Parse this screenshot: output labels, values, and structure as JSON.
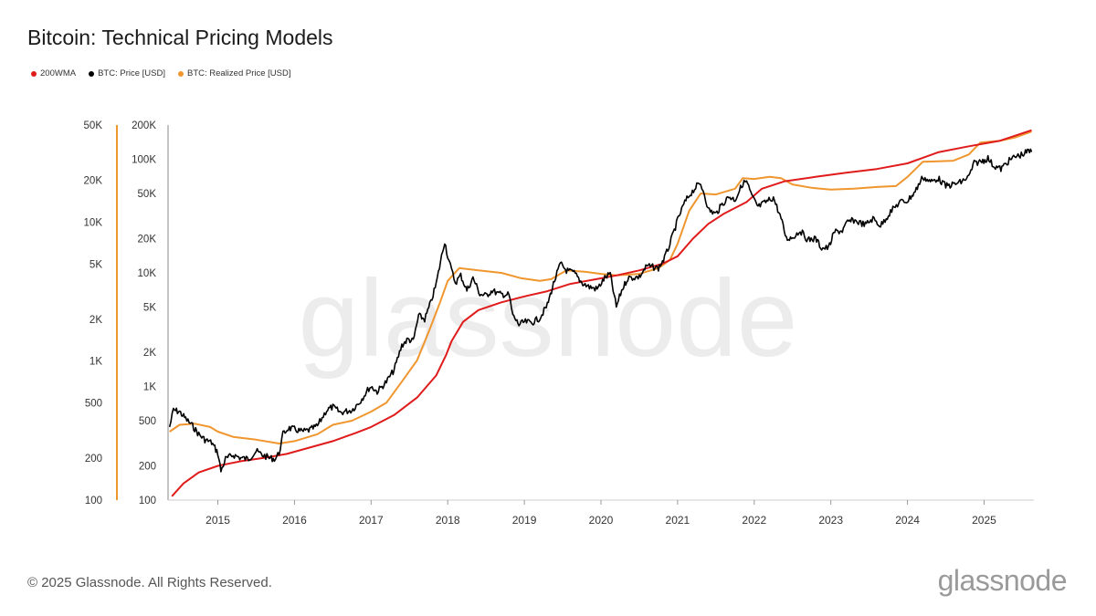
{
  "title": "Bitcoin: Technical Pricing Models",
  "footer": {
    "copyright": "© 2025 Glassnode. All Rights Reserved.",
    "logo": "glassnode"
  },
  "watermark": "glassnode",
  "colors": {
    "wma200": "#e01b1b",
    "price": "#000000",
    "realized": "#f0962e",
    "axis": "#666666"
  },
  "chart_data": {
    "type": "line",
    "title": "Bitcoin: Technical Pricing Models",
    "legend": [
      {
        "name": "200WMA",
        "color": "#e01b1b"
      },
      {
        "name": "BTC: Price [USD]",
        "color": "#000000"
      },
      {
        "name": "BTC: Realized Price [USD]",
        "color": "#f0962e"
      }
    ],
    "legend_position": "top-left",
    "grid": false,
    "x_ticks": [
      "2015",
      "2016",
      "2017",
      "2018",
      "2019",
      "2020",
      "2021",
      "2022",
      "2023",
      "2024",
      "2025"
    ],
    "x_range": [
      2014.35,
      2025.65
    ],
    "y_left": {
      "scale": "log",
      "range": [
        100,
        50000
      ],
      "ticks": [
        100,
        200,
        500,
        1000,
        2000,
        5000,
        10000,
        20000,
        50000
      ],
      "tick_labels": [
        "100",
        "200",
        "500",
        "1K",
        "2K",
        "5K",
        "10K",
        "20K",
        "50K"
      ]
    },
    "y_right": {
      "scale": "log",
      "range": [
        100,
        200000
      ],
      "ticks": [
        100,
        200,
        500,
        1000,
        2000,
        5000,
        10000,
        20000,
        50000,
        100000,
        200000
      ],
      "tick_labels": [
        "100",
        "200",
        "500",
        "1K",
        "2K",
        "5K",
        "10K",
        "20K",
        "50K",
        "100K",
        "200K"
      ]
    },
    "series": [
      {
        "name": "BTC: Price [USD]",
        "color": "#000000",
        "points": [
          [
            2014.37,
            440
          ],
          [
            2014.42,
            620
          ],
          [
            2014.5,
            600
          ],
          [
            2014.58,
            520
          ],
          [
            2014.67,
            450
          ],
          [
            2014.75,
            380
          ],
          [
            2014.83,
            340
          ],
          [
            2014.92,
            320
          ],
          [
            2015.0,
            260
          ],
          [
            2015.04,
            180
          ],
          [
            2015.1,
            230
          ],
          [
            2015.2,
            250
          ],
          [
            2015.3,
            235
          ],
          [
            2015.4,
            230
          ],
          [
            2015.5,
            270
          ],
          [
            2015.58,
            250
          ],
          [
            2015.67,
            235
          ],
          [
            2015.75,
            230
          ],
          [
            2015.8,
            260
          ],
          [
            2015.85,
            380
          ],
          [
            2015.92,
            430
          ],
          [
            2016.0,
            420
          ],
          [
            2016.1,
            400
          ],
          [
            2016.2,
            415
          ],
          [
            2016.3,
            450
          ],
          [
            2016.42,
            620
          ],
          [
            2016.5,
            660
          ],
          [
            2016.6,
            590
          ],
          [
            2016.75,
            620
          ],
          [
            2016.85,
            730
          ],
          [
            2016.97,
            960
          ],
          [
            2017.0,
            1000
          ],
          [
            2017.08,
            900
          ],
          [
            2017.2,
            1100
          ],
          [
            2017.3,
            1400
          ],
          [
            2017.4,
            2300
          ],
          [
            2017.48,
            2600
          ],
          [
            2017.55,
            2500
          ],
          [
            2017.62,
            4200
          ],
          [
            2017.7,
            3900
          ],
          [
            2017.78,
            5500
          ],
          [
            2017.85,
            8000
          ],
          [
            2017.92,
            14000
          ],
          [
            2017.96,
            19000
          ],
          [
            2018.0,
            14000
          ],
          [
            2018.05,
            10500
          ],
          [
            2018.1,
            8200
          ],
          [
            2018.17,
            9500
          ],
          [
            2018.25,
            7000
          ],
          [
            2018.33,
            9000
          ],
          [
            2018.42,
            6500
          ],
          [
            2018.5,
            6300
          ],
          [
            2018.58,
            7000
          ],
          [
            2018.67,
            6500
          ],
          [
            2018.8,
            6400
          ],
          [
            2018.85,
            4200
          ],
          [
            2018.93,
            3500
          ],
          [
            2019.0,
            3700
          ],
          [
            2019.1,
            3650
          ],
          [
            2019.2,
            4000
          ],
          [
            2019.3,
            5200
          ],
          [
            2019.38,
            8000
          ],
          [
            2019.47,
            12000
          ],
          [
            2019.55,
            10500
          ],
          [
            2019.65,
            10000
          ],
          [
            2019.75,
            8200
          ],
          [
            2019.85,
            7500
          ],
          [
            2019.95,
            7200
          ],
          [
            2020.05,
            9000
          ],
          [
            2020.12,
            9800
          ],
          [
            2020.2,
            5000
          ],
          [
            2020.27,
            7000
          ],
          [
            2020.35,
            9000
          ],
          [
            2020.5,
            9200
          ],
          [
            2020.6,
            11500
          ],
          [
            2020.75,
            11000
          ],
          [
            2020.83,
            13500
          ],
          [
            2020.9,
            18000
          ],
          [
            2021.0,
            29000
          ],
          [
            2021.08,
            40000
          ],
          [
            2021.15,
            48000
          ],
          [
            2021.25,
            58000
          ],
          [
            2021.3,
            60000
          ],
          [
            2021.35,
            50000
          ],
          [
            2021.4,
            36000
          ],
          [
            2021.5,
            33000
          ],
          [
            2021.58,
            40000
          ],
          [
            2021.67,
            47000
          ],
          [
            2021.75,
            44000
          ],
          [
            2021.85,
            61000
          ],
          [
            2021.9,
            64000
          ],
          [
            2021.97,
            47000
          ],
          [
            2022.05,
            38000
          ],
          [
            2022.15,
            42000
          ],
          [
            2022.25,
            46000
          ],
          [
            2022.35,
            30000
          ],
          [
            2022.42,
            20000
          ],
          [
            2022.5,
            20500
          ],
          [
            2022.6,
            23500
          ],
          [
            2022.7,
            19500
          ],
          [
            2022.8,
            20000
          ],
          [
            2022.88,
            16500
          ],
          [
            2022.97,
            16600
          ],
          [
            2023.05,
            23000
          ],
          [
            2023.15,
            23500
          ],
          [
            2023.22,
            28000
          ],
          [
            2023.3,
            29000
          ],
          [
            2023.45,
            26500
          ],
          [
            2023.55,
            30000
          ],
          [
            2023.65,
            26000
          ],
          [
            2023.78,
            34500
          ],
          [
            2023.9,
            42000
          ],
          [
            2024.0,
            43000
          ],
          [
            2024.1,
            52000
          ],
          [
            2024.2,
            70000
          ],
          [
            2024.3,
            63000
          ],
          [
            2024.4,
            68000
          ],
          [
            2024.5,
            58000
          ],
          [
            2024.6,
            60000
          ],
          [
            2024.7,
            63000
          ],
          [
            2024.8,
            70000
          ],
          [
            2024.87,
            92000
          ],
          [
            2024.97,
            96000
          ],
          [
            2025.05,
            102000
          ],
          [
            2025.12,
            88000
          ],
          [
            2025.22,
            82000
          ],
          [
            2025.3,
            94000
          ],
          [
            2025.4,
            105000
          ],
          [
            2025.5,
            110000
          ],
          [
            2025.58,
            118000
          ],
          [
            2025.62,
            116000
          ]
        ]
      },
      {
        "name": "BTC: Realized Price [USD]",
        "color": "#f0962e",
        "points": [
          [
            2014.37,
            400
          ],
          [
            2014.5,
            460
          ],
          [
            2014.7,
            470
          ],
          [
            2014.9,
            440
          ],
          [
            2015.0,
            400
          ],
          [
            2015.2,
            360
          ],
          [
            2015.5,
            340
          ],
          [
            2015.8,
            315
          ],
          [
            2016.0,
            330
          ],
          [
            2016.3,
            380
          ],
          [
            2016.5,
            460
          ],
          [
            2016.75,
            500
          ],
          [
            2017.0,
            600
          ],
          [
            2017.2,
            720
          ],
          [
            2017.4,
            1100
          ],
          [
            2017.6,
            1700
          ],
          [
            2017.75,
            3000
          ],
          [
            2017.9,
            5500
          ],
          [
            2018.0,
            8500
          ],
          [
            2018.15,
            11000
          ],
          [
            2018.4,
            10500
          ],
          [
            2018.7,
            10000
          ],
          [
            2018.95,
            9000
          ],
          [
            2019.2,
            8500
          ],
          [
            2019.35,
            8800
          ],
          [
            2019.55,
            10500
          ],
          [
            2019.8,
            10200
          ],
          [
            2020.0,
            9800
          ],
          [
            2020.2,
            9500
          ],
          [
            2020.5,
            9800
          ],
          [
            2020.75,
            11000
          ],
          [
            2020.9,
            13000
          ],
          [
            2021.0,
            18000
          ],
          [
            2021.15,
            35000
          ],
          [
            2021.3,
            50000
          ],
          [
            2021.5,
            49000
          ],
          [
            2021.75,
            55000
          ],
          [
            2021.85,
            68000
          ],
          [
            2022.0,
            67000
          ],
          [
            2022.2,
            70000
          ],
          [
            2022.35,
            68000
          ],
          [
            2022.5,
            60000
          ],
          [
            2022.75,
            56000
          ],
          [
            2023.0,
            54000
          ],
          [
            2023.3,
            55000
          ],
          [
            2023.6,
            57000
          ],
          [
            2023.85,
            58000
          ],
          [
            2024.0,
            70000
          ],
          [
            2024.2,
            95000
          ],
          [
            2024.4,
            96000
          ],
          [
            2024.6,
            97000
          ],
          [
            2024.8,
            110000
          ],
          [
            2024.95,
            140000
          ],
          [
            2025.2,
            145000
          ],
          [
            2025.4,
            155000
          ],
          [
            2025.62,
            175000
          ]
        ]
      },
      {
        "name": "200WMA",
        "color": "#e01b1b",
        "points": [
          [
            2014.4,
            108
          ],
          [
            2014.55,
            140
          ],
          [
            2014.75,
            175
          ],
          [
            2015.0,
            200
          ],
          [
            2015.3,
            220
          ],
          [
            2015.6,
            235
          ],
          [
            2015.9,
            255
          ],
          [
            2016.2,
            290
          ],
          [
            2016.5,
            330
          ],
          [
            2016.8,
            390
          ],
          [
            2017.0,
            440
          ],
          [
            2017.3,
            560
          ],
          [
            2017.6,
            800
          ],
          [
            2017.85,
            1250
          ],
          [
            2017.98,
            1900
          ],
          [
            2018.05,
            2500
          ],
          [
            2018.2,
            3700
          ],
          [
            2018.4,
            4700
          ],
          [
            2018.7,
            5500
          ],
          [
            2019.0,
            6200
          ],
          [
            2019.3,
            6900
          ],
          [
            2019.6,
            8000
          ],
          [
            2019.9,
            8700
          ],
          [
            2020.2,
            9500
          ],
          [
            2020.5,
            10500
          ],
          [
            2020.8,
            12000
          ],
          [
            2021.0,
            14000
          ],
          [
            2021.2,
            20000
          ],
          [
            2021.4,
            27000
          ],
          [
            2021.6,
            33000
          ],
          [
            2021.9,
            42000
          ],
          [
            2022.1,
            55000
          ],
          [
            2022.4,
            64000
          ],
          [
            2022.8,
            70000
          ],
          [
            2023.2,
            76000
          ],
          [
            2023.6,
            82000
          ],
          [
            2024.0,
            92000
          ],
          [
            2024.4,
            115000
          ],
          [
            2024.8,
            130000
          ],
          [
            2025.2,
            145000
          ],
          [
            2025.62,
            180000
          ]
        ]
      }
    ]
  }
}
